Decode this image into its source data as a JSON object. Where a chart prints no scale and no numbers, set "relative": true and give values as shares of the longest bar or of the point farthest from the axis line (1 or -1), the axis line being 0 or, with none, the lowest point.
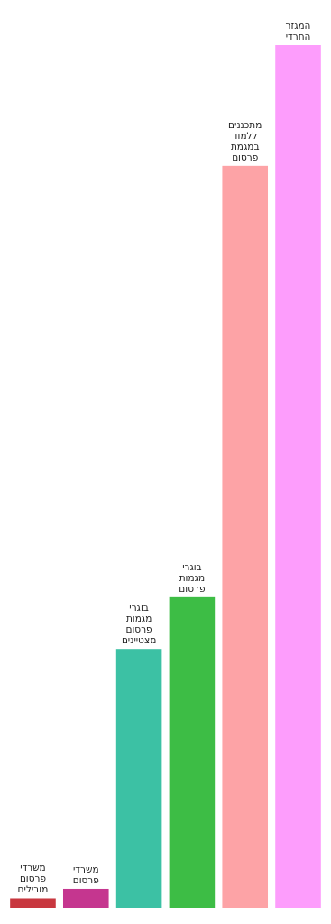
{
  "chart_data": {
    "type": "bar",
    "relative": true,
    "categories": [
      "משרדי פרסום מובילים",
      "משרדי פרסום",
      "בוגרי מגמות פרסום מצטיינים",
      "בוגרי מגמות פרסום",
      "מתכננים ללמוד במגמת פרסום",
      "המגזר החרדי"
    ],
    "values": [
      0.011,
      0.022,
      0.3,
      0.36,
      0.86,
      1
    ],
    "colors": [
      "#c8373f",
      "#c5368f",
      "#3cc1a4",
      "#3dbd45",
      "#fda3a6",
      "#fd9dfc"
    ]
  }
}
